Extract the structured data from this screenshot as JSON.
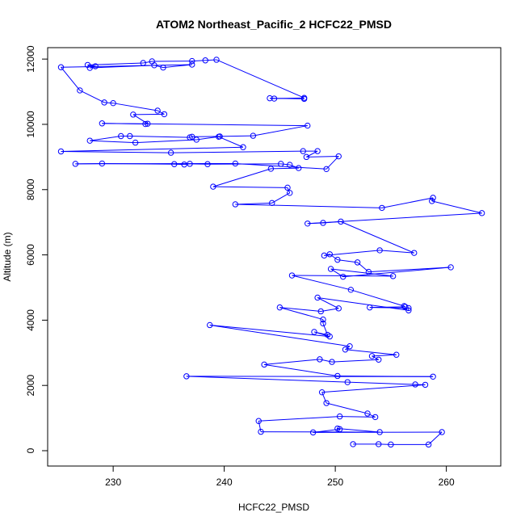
{
  "chart_data": {
    "type": "line",
    "title": "ATOM2 Northeast_Pacific_2 HCFC22_PMSD",
    "xlabel": "HCFC22_PMSD",
    "ylabel": "Altitude (m)",
    "xlim": [
      224.1,
      264.9
    ],
    "ylim": [
      -470,
      12350
    ],
    "xticks": [
      230,
      240,
      250,
      260
    ],
    "yticks": [
      0,
      2000,
      4000,
      6000,
      8000,
      10000,
      12000
    ],
    "grid": false,
    "series": [
      {
        "color": "#0000ff",
        "marker": "open-circle",
        "points": [
          [
            247.2,
            10780
          ],
          [
            244.1,
            10800
          ],
          [
            244.5,
            10790
          ],
          [
            247.2,
            10810
          ],
          [
            239.3,
            11980
          ],
          [
            238.3,
            11960
          ],
          [
            237.1,
            11940
          ],
          [
            233.5,
            11930
          ],
          [
            232.7,
            11880
          ],
          [
            227.7,
            11820
          ],
          [
            228.4,
            11780
          ],
          [
            227.9,
            11730
          ],
          [
            233.7,
            11810
          ],
          [
            234.5,
            11740
          ],
          [
            237.1,
            11830
          ],
          [
            225.3,
            11750
          ],
          [
            227.0,
            11040
          ],
          [
            229.2,
            10670
          ],
          [
            230.0,
            10650
          ],
          [
            234.0,
            10420
          ],
          [
            234.6,
            10310
          ],
          [
            231.8,
            10300
          ],
          [
            233.1,
            10020
          ],
          [
            232.9,
            10010
          ],
          [
            229.0,
            10030
          ],
          [
            247.5,
            9960
          ],
          [
            242.6,
            9650
          ],
          [
            239.6,
            9630
          ],
          [
            237.1,
            9620
          ],
          [
            236.9,
            9600
          ],
          [
            231.5,
            9640
          ],
          [
            230.7,
            9640
          ],
          [
            227.9,
            9500
          ],
          [
            232.0,
            9440
          ],
          [
            237.5,
            9530
          ],
          [
            239.5,
            9620
          ],
          [
            241.7,
            9300
          ],
          [
            225.3,
            9170
          ],
          [
            235.2,
            9130
          ],
          [
            247.1,
            9180
          ],
          [
            248.4,
            9180
          ],
          [
            247.4,
            9000
          ],
          [
            250.3,
            9020
          ],
          [
            249.2,
            8630
          ],
          [
            241.0,
            8800
          ],
          [
            226.6,
            8790
          ],
          [
            229.0,
            8800
          ],
          [
            235.5,
            8780
          ],
          [
            236.4,
            8770
          ],
          [
            236.9,
            8790
          ],
          [
            238.5,
            8780
          ],
          [
            245.1,
            8790
          ],
          [
            245.9,
            8760
          ],
          [
            246.7,
            8660
          ],
          [
            244.2,
            8640
          ],
          [
            239.0,
            8090
          ],
          [
            245.7,
            8060
          ],
          [
            245.9,
            7900
          ],
          [
            244.3,
            7590
          ],
          [
            241.0,
            7550
          ],
          [
            254.2,
            7440
          ],
          [
            258.8,
            7750
          ],
          [
            258.7,
            7650
          ],
          [
            263.2,
            7280
          ],
          [
            247.5,
            6960
          ],
          [
            248.9,
            6980
          ],
          [
            250.5,
            7020
          ],
          [
            257.1,
            6060
          ],
          [
            254.0,
            6140
          ],
          [
            249.0,
            5980
          ],
          [
            249.5,
            6020
          ],
          [
            250.2,
            5850
          ],
          [
            252.0,
            5770
          ],
          [
            253.0,
            5480
          ],
          [
            260.4,
            5620
          ],
          [
            250.7,
            5330
          ],
          [
            249.6,
            5570
          ],
          [
            255.2,
            5350
          ],
          [
            246.1,
            5370
          ],
          [
            251.4,
            4930
          ],
          [
            256.2,
            4430
          ],
          [
            256.3,
            4410
          ],
          [
            253.1,
            4390
          ],
          [
            256.6,
            4370
          ],
          [
            256.6,
            4300
          ],
          [
            248.4,
            4690
          ],
          [
            250.3,
            4360
          ],
          [
            248.7,
            4270
          ],
          [
            245.0,
            4390
          ],
          [
            248.9,
            4020
          ],
          [
            248.9,
            3900
          ],
          [
            249.3,
            3550
          ],
          [
            248.1,
            3640
          ],
          [
            249.5,
            3500
          ],
          [
            238.7,
            3850
          ],
          [
            251.3,
            3200
          ],
          [
            250.9,
            3100
          ],
          [
            255.5,
            2940
          ],
          [
            253.3,
            2900
          ],
          [
            253.9,
            2790
          ],
          [
            249.7,
            2720
          ],
          [
            248.6,
            2800
          ],
          [
            243.6,
            2640
          ],
          [
            250.2,
            2290
          ],
          [
            258.8,
            2270
          ],
          [
            236.6,
            2280
          ],
          [
            251.1,
            2100
          ],
          [
            257.2,
            2030
          ],
          [
            258.1,
            2020
          ],
          [
            248.8,
            1790
          ],
          [
            249.2,
            1460
          ],
          [
            252.9,
            1140
          ],
          [
            253.6,
            1030
          ],
          [
            250.4,
            1050
          ],
          [
            243.1,
            910
          ],
          [
            243.3,
            580
          ],
          [
            254.0,
            570
          ],
          [
            250.2,
            680
          ],
          [
            250.4,
            660
          ],
          [
            248.0,
            560
          ],
          [
            259.6,
            570
          ],
          [
            258.4,
            190
          ],
          [
            255.0,
            190
          ],
          [
            253.9,
            200
          ],
          [
            251.6,
            200
          ]
        ]
      }
    ]
  }
}
